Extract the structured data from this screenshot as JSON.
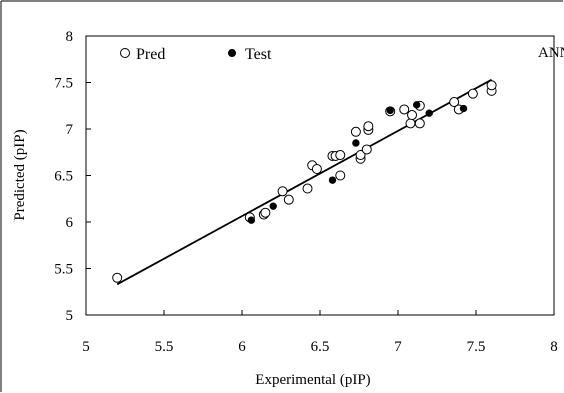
{
  "chart_data": {
    "type": "scatter",
    "title": "",
    "xlabel": "Experimental (pIP)",
    "ylabel": "Predicted (pIP)",
    "xlim": [
      5,
      8
    ],
    "ylim": [
      5,
      8
    ],
    "x_ticks": [
      "5",
      "5.5",
      "6",
      "6.5",
      "7",
      "7.5",
      "8"
    ],
    "y_ticks": [
      "5",
      "5.5",
      "6",
      "6.5",
      "7",
      "7.5",
      "8"
    ],
    "x_tick_values": [
      5,
      5.5,
      6,
      6.5,
      7,
      7.5,
      8
    ],
    "y_tick_values": [
      5,
      5.5,
      6,
      6.5,
      7,
      7.5,
      8
    ],
    "grid": false,
    "legend_position": "top-left",
    "annotation": "ANN",
    "series": [
      {
        "name": "Pred",
        "marker": "open-circle",
        "points": [
          [
            5.2,
            5.4
          ],
          [
            6.05,
            6.05
          ],
          [
            6.14,
            6.08
          ],
          [
            6.15,
            6.1
          ],
          [
            6.26,
            6.33
          ],
          [
            6.3,
            6.24
          ],
          [
            6.42,
            6.36
          ],
          [
            6.45,
            6.61
          ],
          [
            6.48,
            6.57
          ],
          [
            6.58,
            6.71
          ],
          [
            6.6,
            6.71
          ],
          [
            6.63,
            6.72
          ],
          [
            6.63,
            6.5
          ],
          [
            6.73,
            6.97
          ],
          [
            6.76,
            6.68
          ],
          [
            6.76,
            6.72
          ],
          [
            6.8,
            6.78
          ],
          [
            6.81,
            6.99
          ],
          [
            6.81,
            7.03
          ],
          [
            6.95,
            7.19
          ],
          [
            7.04,
            7.21
          ],
          [
            7.08,
            7.06
          ],
          [
            7.09,
            7.15
          ],
          [
            7.14,
            7.25
          ],
          [
            7.14,
            7.06
          ],
          [
            7.36,
            7.29
          ],
          [
            7.39,
            7.21
          ],
          [
            7.48,
            7.38
          ],
          [
            7.6,
            7.41
          ],
          [
            7.6,
            7.47
          ]
        ]
      },
      {
        "name": "Test",
        "marker": "filled-circle",
        "points": [
          [
            6.06,
            6.02
          ],
          [
            6.2,
            6.17
          ],
          [
            6.58,
            6.45
          ],
          [
            6.73,
            6.85
          ],
          [
            6.95,
            7.2
          ],
          [
            7.12,
            7.26
          ],
          [
            7.2,
            7.17
          ],
          [
            7.42,
            7.22
          ]
        ]
      }
    ],
    "regression_line": {
      "from": [
        5.2,
        5.33
      ],
      "to": [
        7.6,
        7.53
      ]
    },
    "colors": {
      "marker_stroke": "#000000",
      "open_fill": "#ffffff",
      "filled": "#000000",
      "line": "#000000"
    }
  }
}
